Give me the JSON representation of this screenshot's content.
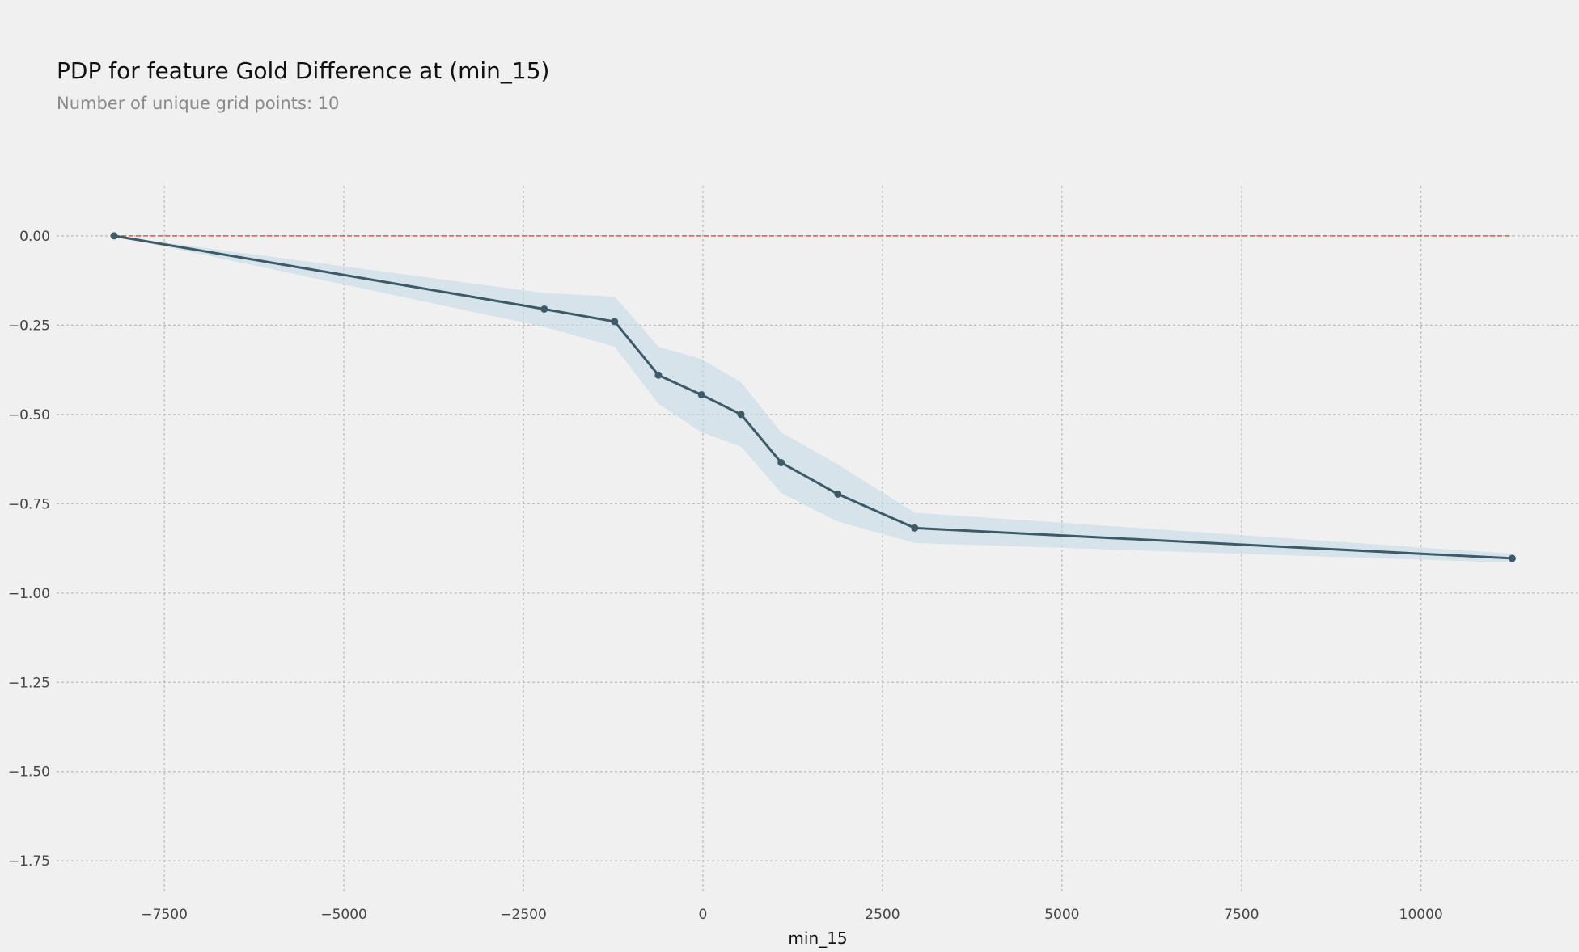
{
  "chart_data": {
    "type": "line",
    "title": "PDP for feature Gold Difference at (min_15)",
    "subtitle": "Number of unique grid points: 10",
    "xlabel": "min_15",
    "ylabel": "",
    "xlim": [
      -9000,
      12200
    ],
    "ylim": [
      -1.84,
      0.14
    ],
    "x_ticks": [
      -7500,
      -5000,
      -2500,
      0,
      2500,
      5000,
      7500,
      10000
    ],
    "x_tick_labels": [
      "−7500",
      "−5000",
      "−2500",
      "0",
      "2500",
      "5000",
      "7500",
      "10000"
    ],
    "y_ticks": [
      0.0,
      -0.25,
      -0.5,
      -0.75,
      -1.0,
      -1.25,
      -1.5,
      -1.75
    ],
    "y_tick_labels": [
      "0.00",
      "−0.25",
      "−0.50",
      "−0.75",
      "−1.00",
      "−1.25",
      "−1.50",
      "−1.75"
    ],
    "grid": true,
    "series": [
      {
        "x": [
          -8200,
          -2210,
          -1230,
          -620,
          -20,
          530,
          1090,
          1880,
          2950,
          11270
        ],
        "y": [
          0.0,
          -0.205,
          -0.24,
          -0.39,
          -0.445,
          -0.5,
          -0.635,
          -0.723,
          -0.818,
          -0.903
        ],
        "upper": [
          0.0,
          -0.16,
          -0.17,
          -0.31,
          -0.345,
          -0.41,
          -0.55,
          -0.64,
          -0.775,
          -0.89
        ],
        "lower": [
          0.0,
          -0.255,
          -0.31,
          -0.47,
          -0.55,
          -0.59,
          -0.72,
          -0.8,
          -0.86,
          -0.915
        ]
      }
    ],
    "reference_line": {
      "y": 0.0,
      "x_range": [
        -8200,
        11270
      ]
    },
    "colors": {
      "line": "#3d5a68",
      "band": "#c5dbe6",
      "reference": "#e8534a",
      "grid": "#b9b9b9",
      "background": "#f0f0f0"
    }
  }
}
